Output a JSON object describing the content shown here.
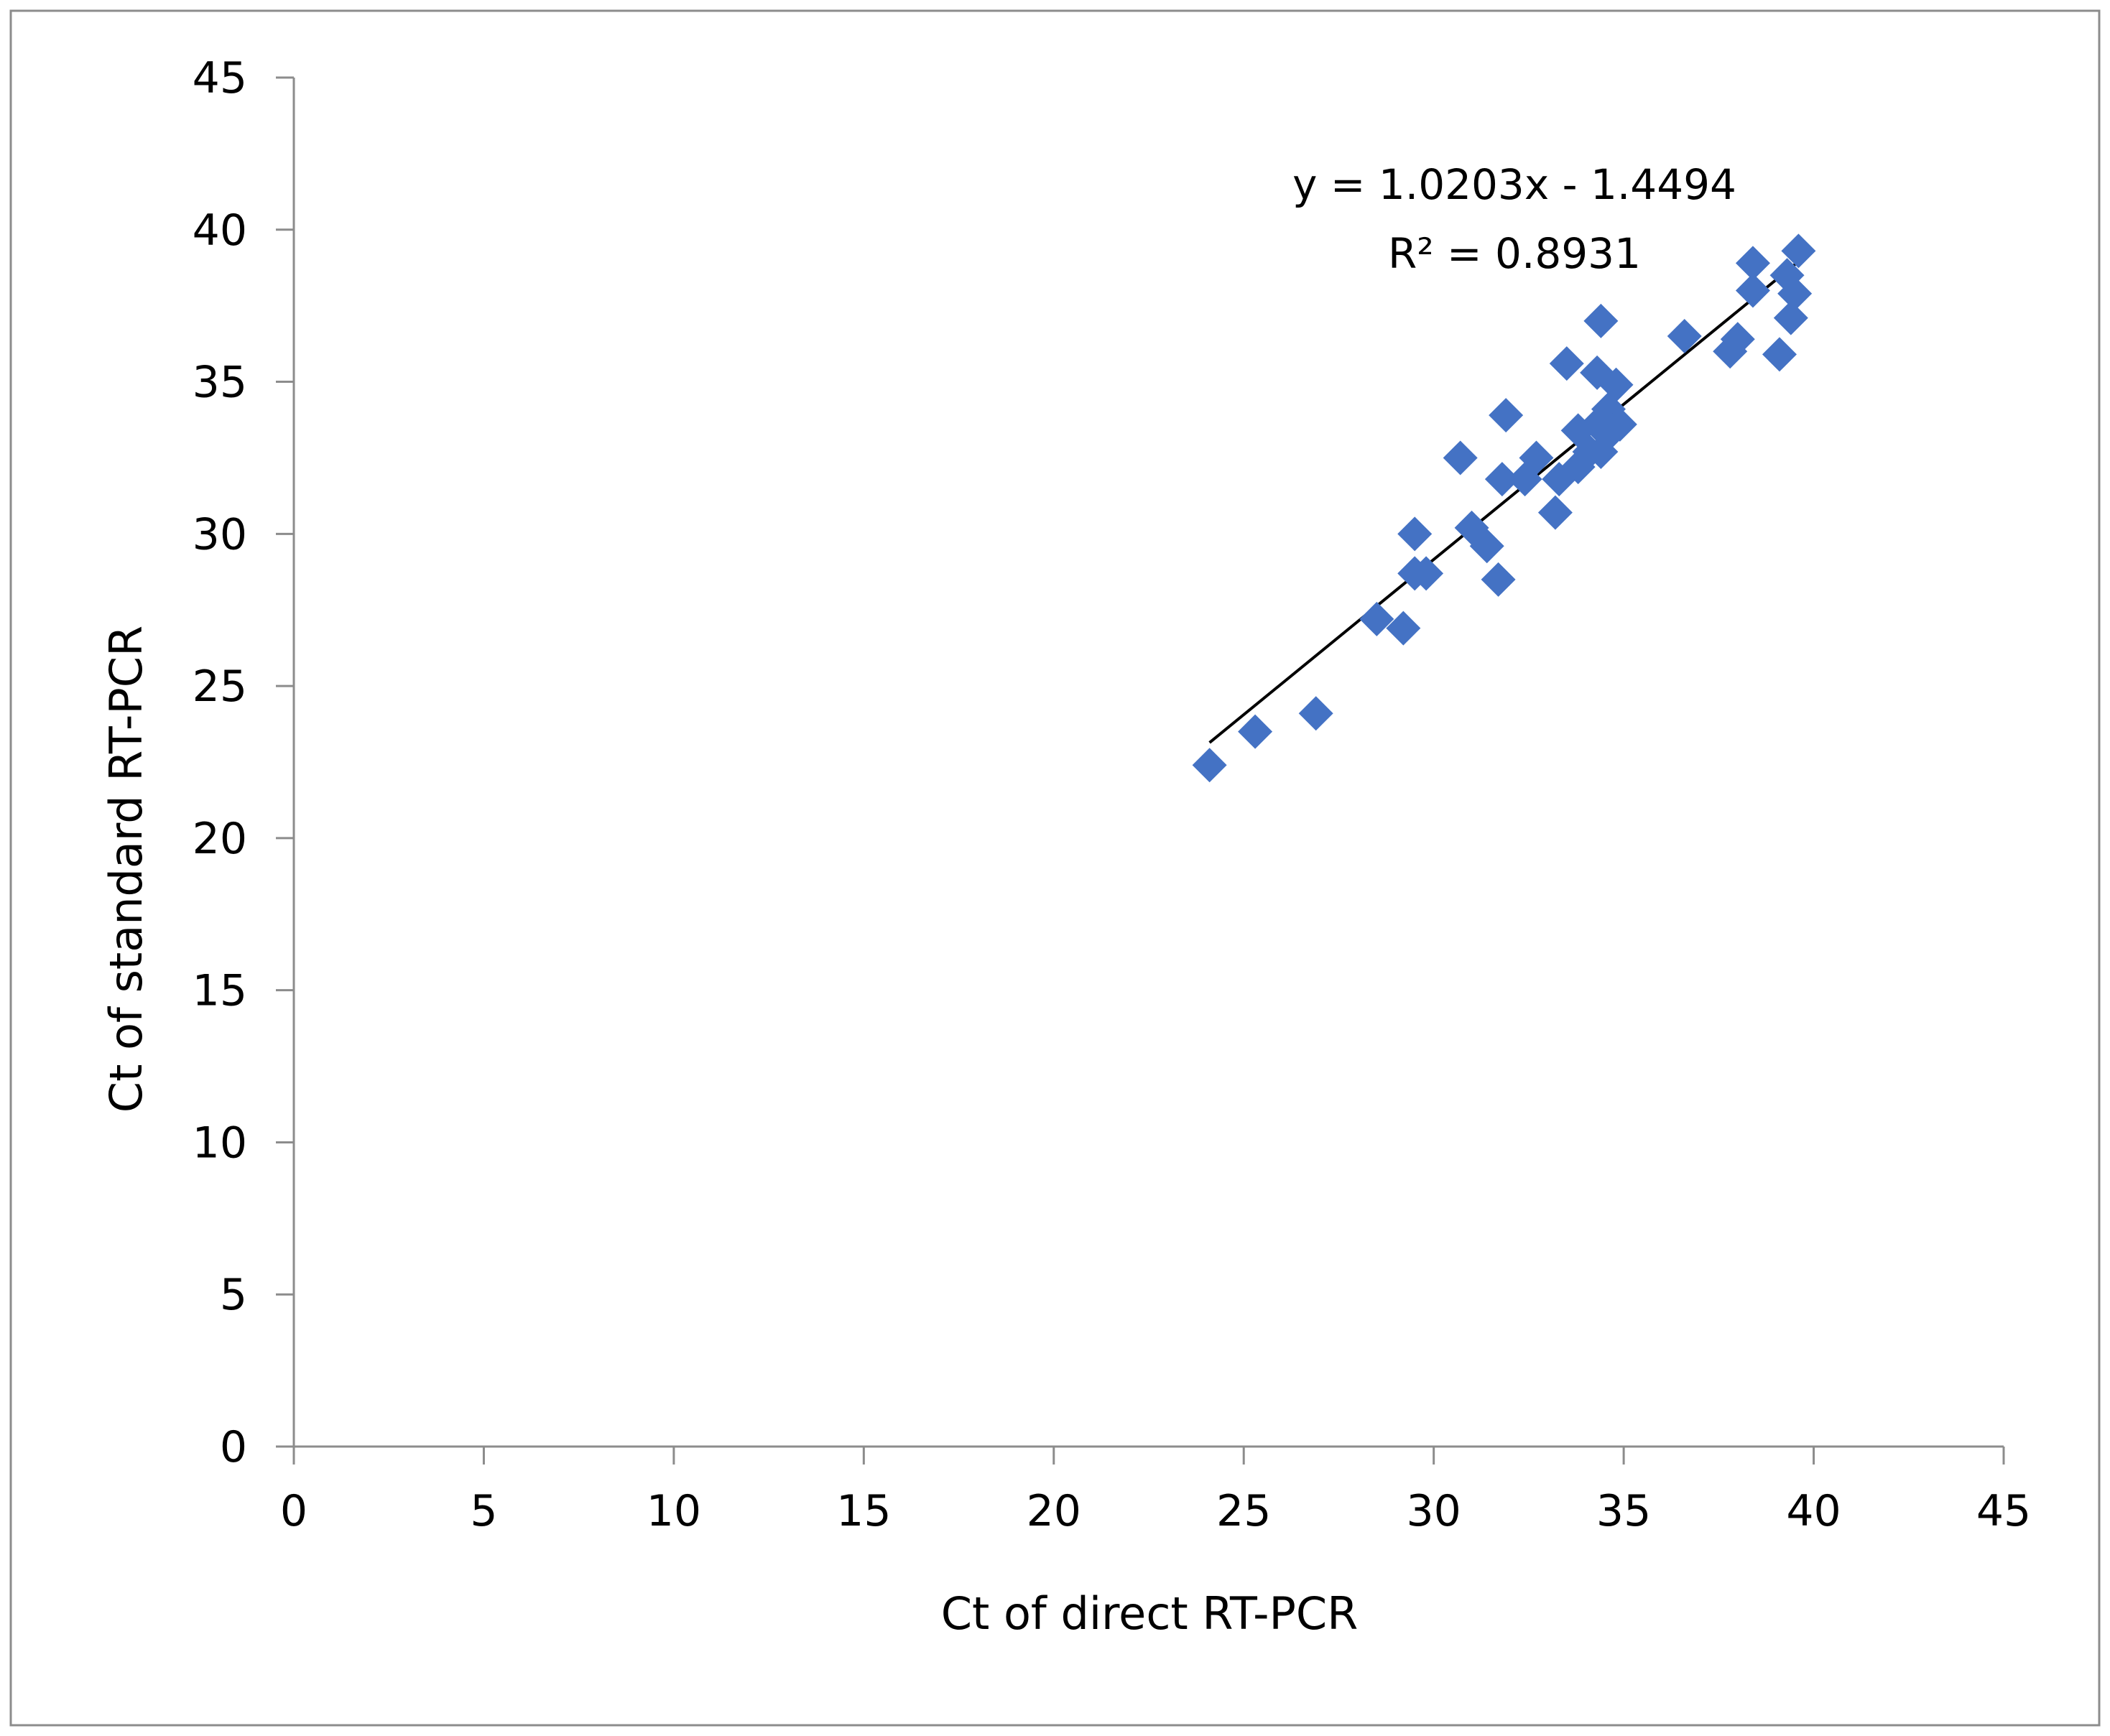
{
  "chart_data": {
    "type": "scatter",
    "title": "",
    "xlabel": "Ct of direct RT-PCR",
    "ylabel": "Ct of standard RT-PCR",
    "xlim": [
      0,
      45
    ],
    "ylim": [
      0,
      45
    ],
    "x_ticks": [
      "0",
      "5",
      "10",
      "15",
      "20",
      "25",
      "30",
      "35",
      "40",
      "45"
    ],
    "y_ticks": [
      "0",
      "5",
      "10",
      "15",
      "20",
      "25",
      "30",
      "35",
      "40",
      "45"
    ],
    "grid": false,
    "legend": "none",
    "marker": "diamond",
    "marker_color": "#4472C4",
    "trendline": {
      "slope": 1.0203,
      "intercept": -1.4494,
      "x_range": [
        24.1,
        39.6
      ],
      "color": "#000000",
      "equation_label": "y = 1.0203x - 1.4494",
      "r2_label": "R² = 0.8931"
    },
    "series": [
      {
        "points": [
          [
            24.1,
            22.4
          ],
          [
            25.3,
            23.5
          ],
          [
            26.9,
            24.1
          ],
          [
            28.5,
            27.2
          ],
          [
            29.2,
            26.9
          ],
          [
            29.5,
            28.7
          ],
          [
            29.5,
            30.0
          ],
          [
            29.8,
            28.7
          ],
          [
            30.7,
            32.5
          ],
          [
            31.0,
            30.2
          ],
          [
            31.4,
            29.6
          ],
          [
            31.7,
            28.5
          ],
          [
            31.8,
            31.8
          ],
          [
            31.9,
            33.9
          ],
          [
            32.4,
            31.8
          ],
          [
            32.7,
            32.5
          ],
          [
            33.2,
            30.7
          ],
          [
            33.3,
            31.8
          ],
          [
            33.5,
            35.6
          ],
          [
            33.8,
            32.2
          ],
          [
            33.8,
            33.4
          ],
          [
            34.1,
            32.7
          ],
          [
            34.3,
            33.6
          ],
          [
            34.3,
            35.3
          ],
          [
            34.4,
            37.0
          ],
          [
            34.4,
            32.7
          ],
          [
            34.6,
            34.1
          ],
          [
            34.7,
            33.4
          ],
          [
            34.8,
            34.9
          ],
          [
            34.9,
            33.6
          ],
          [
            36.6,
            36.5
          ],
          [
            37.8,
            36.0
          ],
          [
            38.0,
            36.4
          ],
          [
            38.4,
            38.0
          ],
          [
            38.4,
            38.9
          ],
          [
            39.1,
            35.9
          ],
          [
            39.3,
            38.5
          ],
          [
            39.4,
            37.1
          ],
          [
            39.5,
            37.9
          ],
          [
            39.6,
            39.3
          ]
        ]
      }
    ]
  }
}
